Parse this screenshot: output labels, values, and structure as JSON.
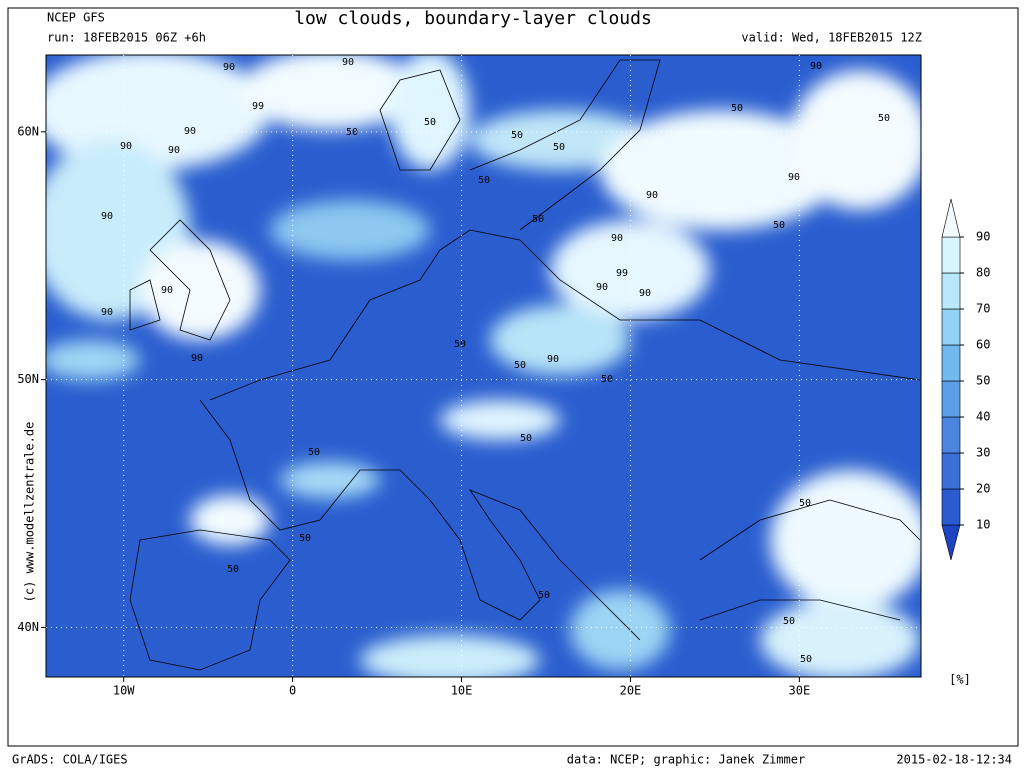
{
  "header": {
    "model": "NCEP GFS",
    "run": "run: 18FEB2015 06Z +6h",
    "title": "low clouds, boundary-layer clouds",
    "valid": "valid: Wed, 18FEB2015 12Z"
  },
  "map": {
    "lon_range": [
      -14.6,
      37.2
    ],
    "lat_range": [
      38,
      63.1
    ],
    "lon_ticks": [
      {
        "value": -10,
        "label": "10W"
      },
      {
        "value": 0,
        "label": "0"
      },
      {
        "value": 10,
        "label": "10E"
      },
      {
        "value": 20,
        "label": "20E"
      },
      {
        "value": 30,
        "label": "30E"
      }
    ],
    "lat_ticks": [
      {
        "value": 60,
        "label": "60N"
      },
      {
        "value": 50,
        "label": "50N"
      },
      {
        "value": 40,
        "label": "40N"
      }
    ],
    "contour_labels": [
      90,
      90,
      99,
      90,
      90,
      90,
      90,
      50,
      50,
      50,
      50,
      50,
      50,
      90,
      50,
      50,
      90,
      50,
      90,
      99,
      90,
      90,
      90,
      90,
      90,
      50,
      50,
      90,
      50,
      50,
      50,
      50,
      50,
      50,
      50,
      50,
      50,
      90
    ]
  },
  "colorbar": {
    "levels": [
      10,
      20,
      30,
      40,
      50,
      60,
      70,
      80,
      90
    ],
    "colors": [
      "#1c44c4",
      "#2a5ccf",
      "#3a70d8",
      "#4a86e0",
      "#5c9ee8",
      "#70b8f0",
      "#92d2f6",
      "#b8e8fa",
      "#d8f4fc",
      "#f2fcff"
    ],
    "unit": "[%]"
  },
  "side": "(c) www.modellzentrale.de",
  "footer": {
    "left": "GrADS: COLA/IGES",
    "middle": "data: NCEP; graphic: Janek Zimmer",
    "right": "2015-02-18-12:34"
  }
}
